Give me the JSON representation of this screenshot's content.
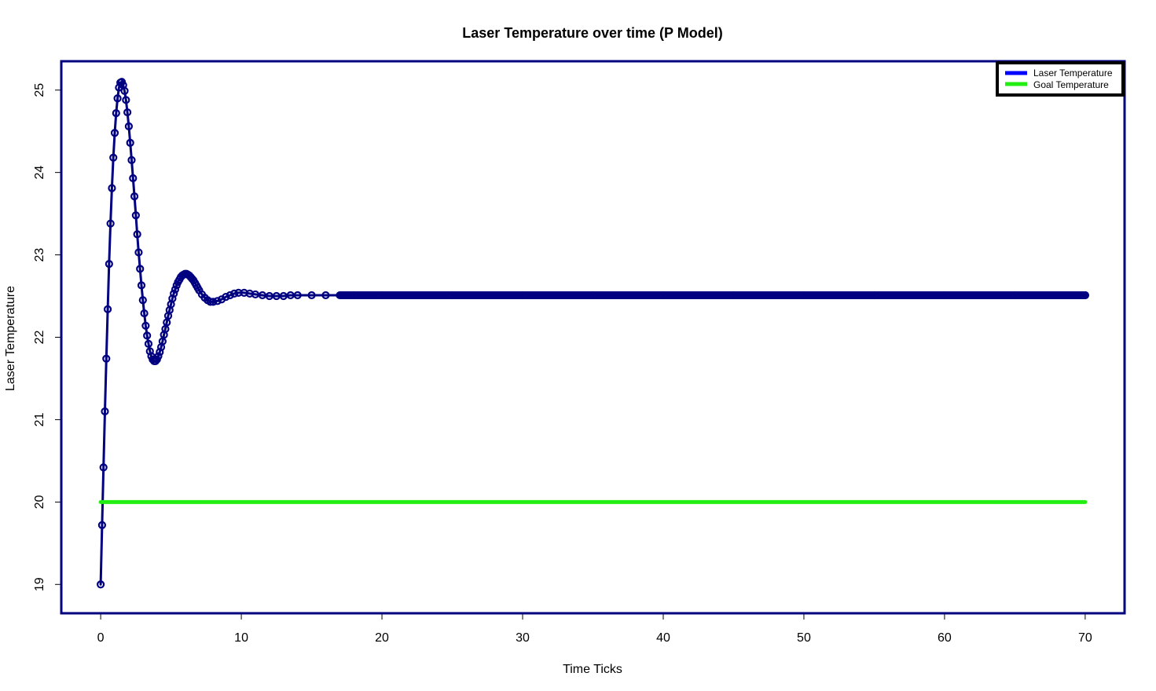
{
  "chart_data": {
    "type": "line",
    "title": "Laser Temperature over time (P Model)",
    "xlabel": "Time Ticks",
    "ylabel": "Laser Temperature",
    "xlim": [
      -2.8,
      72.8
    ],
    "ylim": [
      18.65,
      25.35
    ],
    "xticks": [
      0,
      10,
      20,
      30,
      40,
      50,
      60,
      70
    ],
    "yticks": [
      19,
      20,
      21,
      22,
      23,
      24,
      25
    ],
    "legend": {
      "position": "top-right",
      "entries": [
        {
          "label": "Laser Temperature",
          "color": "#0000ff"
        },
        {
          "label": "Goal Temperature",
          "color": "#22ee11"
        }
      ]
    },
    "series": [
      {
        "name": "Laser Temperature",
        "color": "#000080",
        "style": "line+points",
        "x": [
          0,
          0.1,
          0.2,
          0.3,
          0.4,
          0.5,
          0.6,
          0.7,
          0.8,
          0.9,
          1.0,
          1.1,
          1.2,
          1.3,
          1.4,
          1.5,
          1.6,
          1.7,
          1.8,
          1.9,
          2.0,
          2.1,
          2.2,
          2.3,
          2.4,
          2.5,
          2.6,
          2.7,
          2.8,
          2.9,
          3.0,
          3.1,
          3.2,
          3.3,
          3.4,
          3.5,
          3.6,
          3.7,
          3.8,
          3.9,
          4.0,
          4.1,
          4.2,
          4.3,
          4.4,
          4.5,
          4.6,
          4.7,
          4.8,
          4.9,
          5.0,
          5.1,
          5.2,
          5.3,
          5.4,
          5.5,
          5.6,
          5.7,
          5.8,
          5.9,
          6.0,
          6.1,
          6.2,
          6.3,
          6.4,
          6.5,
          6.6,
          6.7,
          6.8,
          6.9,
          7.0,
          7.2,
          7.4,
          7.6,
          7.8,
          8.0,
          8.3,
          8.6,
          8.9,
          9.2,
          9.5,
          9.8,
          10.2,
          10.6,
          11.0,
          11.5,
          12.0,
          12.5,
          13.0,
          13.5,
          14.0,
          15.0,
          16.0,
          18.0,
          20.0,
          25.0,
          30.0,
          35.0,
          40.0,
          45.0,
          50.0,
          55.0,
          60.0,
          65.0,
          70.0
        ],
        "y": [
          19.0,
          19.72,
          20.42,
          21.1,
          21.74,
          22.34,
          22.89,
          23.38,
          23.81,
          24.18,
          24.48,
          24.72,
          24.9,
          25.03,
          25.09,
          25.1,
          25.06,
          24.99,
          24.88,
          24.73,
          24.56,
          24.36,
          24.15,
          23.93,
          23.71,
          23.48,
          23.25,
          23.03,
          22.83,
          22.63,
          22.45,
          22.29,
          22.14,
          22.02,
          21.92,
          21.83,
          21.77,
          21.73,
          21.71,
          21.71,
          21.73,
          21.77,
          21.82,
          21.88,
          21.95,
          22.03,
          22.1,
          22.18,
          22.26,
          22.33,
          22.4,
          22.47,
          22.53,
          22.58,
          22.63,
          22.67,
          22.7,
          22.73,
          22.75,
          22.76,
          22.77,
          22.77,
          22.76,
          22.75,
          22.73,
          22.71,
          22.69,
          22.66,
          22.63,
          22.6,
          22.57,
          22.52,
          22.48,
          22.45,
          22.43,
          22.43,
          22.44,
          22.46,
          22.49,
          22.51,
          22.53,
          22.54,
          22.54,
          22.53,
          22.52,
          22.51,
          22.5,
          22.5,
          22.5,
          22.51,
          22.51,
          22.51,
          22.51,
          22.51,
          22.51,
          22.51,
          22.51,
          22.51,
          22.51,
          22.51,
          22.51,
          22.51,
          22.51,
          22.51,
          22.51
        ]
      },
      {
        "name": "Goal Temperature",
        "color": "#22ee11",
        "style": "line",
        "x": [
          0,
          70
        ],
        "y": [
          20,
          20
        ]
      }
    ]
  }
}
